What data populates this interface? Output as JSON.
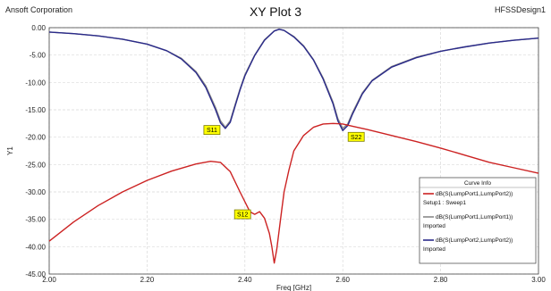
{
  "header": {
    "left": "Ansoft Corporation",
    "title": "XY Plot 3",
    "right": "HFSSDesign1"
  },
  "chart_data": {
    "type": "line",
    "xlabel": "Freq [GHz]",
    "ylabel": "Y1",
    "xlim": [
      2.0,
      3.0
    ],
    "ylim": [
      -45.0,
      0.0
    ],
    "x_ticks": [
      "2.00",
      "2.20",
      "2.40",
      "2.60",
      "2.80",
      "3.00"
    ],
    "y_ticks": [
      "0.00",
      "-5.00",
      "-10.00",
      "-15.00",
      "-20.00",
      "-25.00",
      "-30.00",
      "-35.00",
      "-40.00",
      "-45.00"
    ],
    "grid": true,
    "legend": {
      "title": "Curve Info",
      "placement": "bottom-right",
      "entries": [
        {
          "name": "dB(S(LumpPort1,LumpPort2))",
          "sub": "Setup1 : Sweep1",
          "color": "#cc2222"
        },
        {
          "name": "dB(S(LumpPort1,LumpPort1))",
          "sub": "Imported",
          "color": "#888888"
        },
        {
          "name": "dB(S(LumpPort2,LumpPort2))",
          "sub": "Imported",
          "color": "#2a2a8a"
        }
      ]
    },
    "series": [
      {
        "key": "s11",
        "color": "#888888",
        "x": [
          2.0,
          2.05,
          2.1,
          2.15,
          2.2,
          2.24,
          2.27,
          2.3,
          2.32,
          2.34,
          2.35,
          2.36,
          2.37,
          2.38,
          2.39,
          2.4,
          2.42,
          2.44,
          2.46,
          2.47,
          2.48,
          2.5,
          2.52,
          2.54,
          2.56,
          2.58,
          2.59,
          2.6,
          2.61,
          2.62,
          2.64,
          2.66,
          2.7,
          2.75,
          2.8,
          2.85,
          2.9,
          2.95,
          3.0
        ],
        "y": [
          -0.8,
          -1.1,
          -1.5,
          -2.1,
          -3.0,
          -4.2,
          -5.6,
          -8.0,
          -10.6,
          -14.6,
          -17.0,
          -18.2,
          -17.0,
          -14.0,
          -11.2,
          -8.6,
          -5.0,
          -2.2,
          -0.6,
          -0.3,
          -0.5,
          -1.6,
          -3.3,
          -5.8,
          -9.2,
          -13.6,
          -16.6,
          -18.4,
          -17.6,
          -15.5,
          -11.9,
          -9.6,
          -7.1,
          -5.4,
          -4.3,
          -3.5,
          -2.8,
          -2.3,
          -1.9
        ]
      },
      {
        "key": "s22",
        "color": "#2a2a8a",
        "x": [
          2.0,
          2.05,
          2.1,
          2.15,
          2.2,
          2.24,
          2.27,
          2.3,
          2.32,
          2.34,
          2.35,
          2.36,
          2.37,
          2.38,
          2.39,
          2.4,
          2.42,
          2.44,
          2.46,
          2.47,
          2.48,
          2.5,
          2.52,
          2.54,
          2.56,
          2.58,
          2.59,
          2.6,
          2.61,
          2.62,
          2.64,
          2.66,
          2.7,
          2.75,
          2.8,
          2.85,
          2.9,
          2.95,
          3.0
        ],
        "y": [
          -0.8,
          -1.1,
          -1.5,
          -2.1,
          -3.0,
          -4.2,
          -5.7,
          -8.2,
          -10.9,
          -15.0,
          -17.4,
          -18.4,
          -17.3,
          -14.3,
          -11.4,
          -8.8,
          -5.1,
          -2.3,
          -0.6,
          -0.3,
          -0.5,
          -1.7,
          -3.4,
          -5.9,
          -9.4,
          -13.9,
          -17.0,
          -18.8,
          -17.9,
          -15.8,
          -12.1,
          -9.7,
          -7.2,
          -5.5,
          -4.3,
          -3.5,
          -2.8,
          -2.3,
          -1.9
        ]
      },
      {
        "key": "s12",
        "color": "#cc2222",
        "x": [
          2.0,
          2.05,
          2.1,
          2.15,
          2.2,
          2.25,
          2.3,
          2.33,
          2.35,
          2.37,
          2.39,
          2.41,
          2.42,
          2.43,
          2.44,
          2.45,
          2.455,
          2.46,
          2.465,
          2.47,
          2.475,
          2.48,
          2.49,
          2.5,
          2.52,
          2.54,
          2.56,
          2.58,
          2.6,
          2.62,
          2.65,
          2.7,
          2.75,
          2.8,
          2.85,
          2.9,
          2.95,
          3.0
        ],
        "y": [
          -39.0,
          -35.5,
          -32.5,
          -30.0,
          -27.9,
          -26.2,
          -24.9,
          -24.4,
          -24.6,
          -26.3,
          -30.0,
          -33.6,
          -34.1,
          -33.6,
          -34.8,
          -37.6,
          -40.0,
          -43.0,
          -40.5,
          -37.0,
          -33.5,
          -30.0,
          -26.0,
          -22.5,
          -19.7,
          -18.2,
          -17.6,
          -17.5,
          -17.6,
          -18.0,
          -18.6,
          -19.7,
          -20.8,
          -22.0,
          -23.3,
          -24.6,
          -25.6,
          -26.6
        ]
      }
    ],
    "annotations": [
      {
        "text": "S11",
        "x": 2.36,
        "y": -18.2
      },
      {
        "text": "S22",
        "x": 2.6,
        "y": -18.8
      },
      {
        "text": "S12",
        "x": 2.43,
        "y": -33.6
      }
    ]
  }
}
